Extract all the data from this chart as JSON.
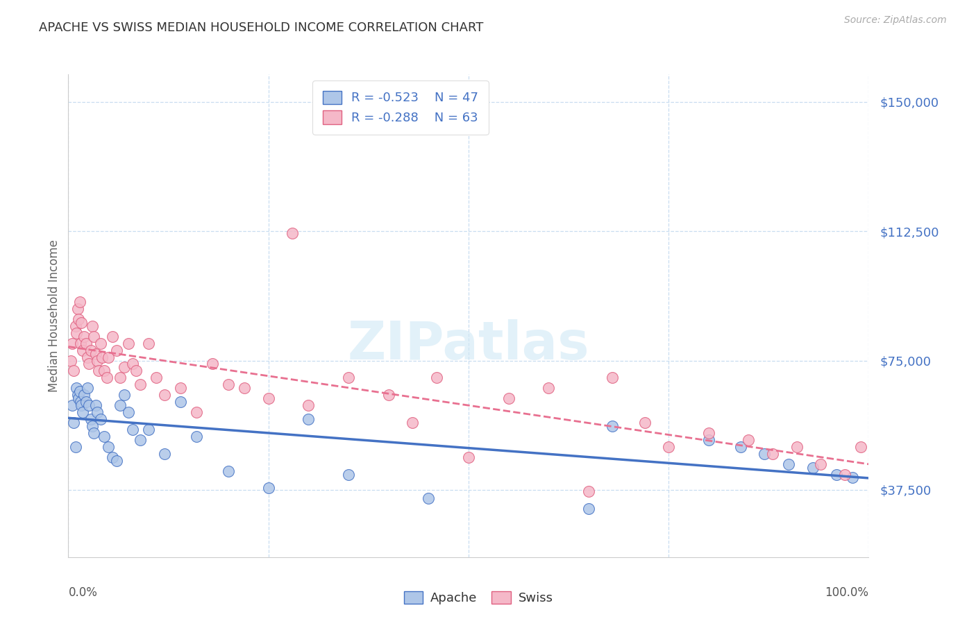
{
  "title": "APACHE VS SWISS MEDIAN HOUSEHOLD INCOME CORRELATION CHART",
  "source": "Source: ZipAtlas.com",
  "ylabel": "Median Household Income",
  "yticks": [
    37500,
    75000,
    112500,
    150000
  ],
  "ytick_labels": [
    "$37,500",
    "$75,000",
    "$112,500",
    "$150,000"
  ],
  "ymin": 18000,
  "ymax": 158000,
  "xmin": 0.0,
  "xmax": 1.0,
  "apache_color": "#aec6e8",
  "apache_edge_color": "#4472c4",
  "swiss_color": "#f5b8c8",
  "swiss_edge_color": "#e06080",
  "apache_line_color": "#4472c4",
  "swiss_line_color": "#e87090",
  "label_color": "#4472c4",
  "watermark": "ZIPatlas",
  "legend_r_apache": "-0.523",
  "legend_n_apache": "47",
  "legend_r_swiss": "-0.288",
  "legend_n_swiss": "63",
  "apache_x": [
    0.005,
    0.007,
    0.009,
    0.01,
    0.012,
    0.013,
    0.014,
    0.015,
    0.016,
    0.018,
    0.02,
    0.022,
    0.024,
    0.026,
    0.028,
    0.03,
    0.032,
    0.034,
    0.036,
    0.04,
    0.045,
    0.05,
    0.055,
    0.06,
    0.065,
    0.07,
    0.075,
    0.08,
    0.09,
    0.1,
    0.12,
    0.14,
    0.16,
    0.2,
    0.25,
    0.3,
    0.35,
    0.45,
    0.65,
    0.68,
    0.8,
    0.84,
    0.87,
    0.9,
    0.93,
    0.96,
    0.98
  ],
  "apache_y": [
    62000,
    57000,
    50000,
    67000,
    65000,
    64000,
    66000,
    63000,
    62000,
    60000,
    65000,
    63000,
    67000,
    62000,
    58000,
    56000,
    54000,
    62000,
    60000,
    58000,
    53000,
    50000,
    47000,
    46000,
    62000,
    65000,
    60000,
    55000,
    52000,
    55000,
    48000,
    63000,
    53000,
    43000,
    38000,
    58000,
    42000,
    35000,
    32000,
    56000,
    52000,
    50000,
    48000,
    45000,
    44000,
    42000,
    41000
  ],
  "swiss_x": [
    0.003,
    0.005,
    0.007,
    0.009,
    0.01,
    0.012,
    0.013,
    0.014,
    0.015,
    0.016,
    0.018,
    0.02,
    0.022,
    0.024,
    0.026,
    0.028,
    0.03,
    0.032,
    0.034,
    0.036,
    0.038,
    0.04,
    0.042,
    0.045,
    0.048,
    0.05,
    0.055,
    0.06,
    0.065,
    0.07,
    0.075,
    0.08,
    0.085,
    0.09,
    0.1,
    0.11,
    0.12,
    0.14,
    0.16,
    0.18,
    0.2,
    0.22,
    0.25,
    0.28,
    0.3,
    0.35,
    0.4,
    0.43,
    0.46,
    0.5,
    0.55,
    0.6,
    0.65,
    0.68,
    0.72,
    0.75,
    0.8,
    0.85,
    0.88,
    0.91,
    0.94,
    0.97,
    0.99
  ],
  "swiss_y": [
    75000,
    80000,
    72000,
    85000,
    83000,
    90000,
    87000,
    92000,
    80000,
    86000,
    78000,
    82000,
    80000,
    76000,
    74000,
    78000,
    85000,
    82000,
    77000,
    75000,
    72000,
    80000,
    76000,
    72000,
    70000,
    76000,
    82000,
    78000,
    70000,
    73000,
    80000,
    74000,
    72000,
    68000,
    80000,
    70000,
    65000,
    67000,
    60000,
    74000,
    68000,
    67000,
    64000,
    112000,
    62000,
    70000,
    65000,
    57000,
    70000,
    47000,
    64000,
    67000,
    37000,
    70000,
    57000,
    50000,
    54000,
    52000,
    48000,
    50000,
    45000,
    42000,
    50000
  ]
}
